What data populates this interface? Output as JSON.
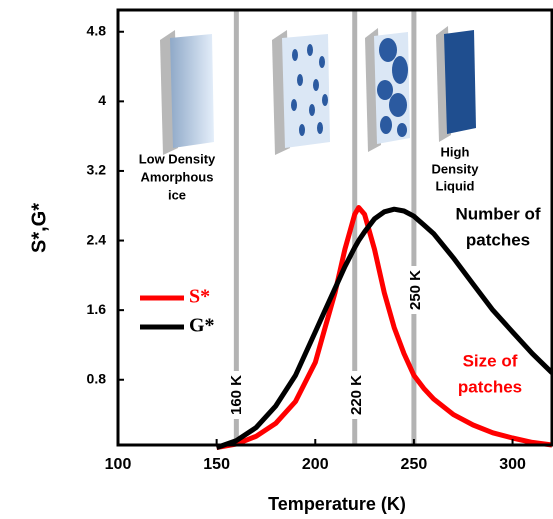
{
  "chart_data": {
    "type": "line",
    "xlabel": "Temperature (K)",
    "ylabel": "S*,G*",
    "x": [
      150,
      160,
      170,
      180,
      190,
      200,
      205,
      210,
      215,
      220,
      222,
      225,
      230,
      235,
      240,
      245,
      250,
      255,
      260,
      270,
      280,
      290,
      300,
      310,
      320
    ],
    "series": [
      {
        "name": "S*",
        "color": "#ff0000",
        "values": [
          0.02,
          0.06,
          0.15,
          0.3,
          0.55,
          1.0,
          1.4,
          1.8,
          2.3,
          2.7,
          2.78,
          2.7,
          2.3,
          1.8,
          1.4,
          1.1,
          0.85,
          0.7,
          0.58,
          0.4,
          0.28,
          0.19,
          0.13,
          0.08,
          0.05
        ]
      },
      {
        "name": "G*",
        "color": "#000000",
        "values": [
          0.02,
          0.1,
          0.25,
          0.5,
          0.85,
          1.35,
          1.6,
          1.85,
          2.1,
          2.32,
          2.4,
          2.5,
          2.65,
          2.73,
          2.76,
          2.74,
          2.68,
          2.58,
          2.48,
          2.2,
          1.9,
          1.6,
          1.35,
          1.1,
          0.88
        ]
      }
    ],
    "xlim": [
      100,
      320
    ],
    "ylim": [
      0.05,
      5.05
    ],
    "xticks": [
      100,
      150,
      200,
      250,
      300
    ],
    "yticks": [
      0.8,
      1.6,
      2.4,
      3.2,
      4,
      4.8
    ],
    "vlines": [
      {
        "value": 160,
        "label": "160 K"
      },
      {
        "value": 220,
        "label": "220 K"
      },
      {
        "value": 250,
        "label": "250 K"
      }
    ],
    "vline_color": "#b3b3b3",
    "annotations": [
      {
        "lines": [
          "Low Density",
          "Amorphous",
          "ice"
        ],
        "color": "#000000"
      },
      {
        "lines": [
          "High",
          "Density",
          "Liquid"
        ],
        "color": "#000000"
      },
      {
        "lines": [
          "Number of",
          "patches"
        ],
        "color": "#000000"
      },
      {
        "lines": [
          "Size of",
          "patches"
        ],
        "color": "#ff0000"
      }
    ],
    "legend": "upper left"
  }
}
